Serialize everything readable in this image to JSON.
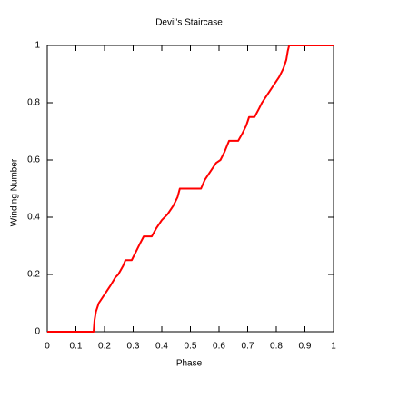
{
  "chart_data": {
    "type": "line",
    "title": "Devil's Staircase",
    "x_label": "Phase",
    "y_label": "Winding Number",
    "x": [
      0,
      0.162,
      0.165,
      0.17,
      0.18,
      0.2,
      0.22,
      0.238,
      0.248,
      0.265,
      0.273,
      0.295,
      0.31,
      0.325,
      0.337,
      0.365,
      0.38,
      0.4,
      0.42,
      0.44,
      0.455,
      0.463,
      0.537,
      0.55,
      0.57,
      0.59,
      0.605,
      0.62,
      0.635,
      0.667,
      0.68,
      0.695,
      0.705,
      0.724,
      0.74,
      0.75,
      0.77,
      0.79,
      0.81,
      0.825,
      0.835,
      0.84,
      0.845,
      1
    ],
    "series": [
      {
        "name": "Winding Number",
        "color": "#ff0000",
        "values": [
          0,
          0,
          0.04,
          0.07,
          0.1,
          0.13,
          0.16,
          0.19,
          0.2,
          0.23,
          0.25,
          0.25,
          0.28,
          0.31,
          0.333,
          0.333,
          0.36,
          0.39,
          0.41,
          0.44,
          0.47,
          0.5,
          0.5,
          0.53,
          0.56,
          0.59,
          0.6,
          0.63,
          0.667,
          0.667,
          0.69,
          0.72,
          0.75,
          0.75,
          0.78,
          0.8,
          0.83,
          0.86,
          0.89,
          0.92,
          0.95,
          0.98,
          1,
          1
        ]
      }
    ],
    "xlim": [
      0,
      1
    ],
    "ylim": [
      0,
      1
    ],
    "xticks": [
      0,
      0.1,
      0.2,
      0.3,
      0.4,
      0.5,
      0.6,
      0.7,
      0.8,
      0.9,
      1
    ],
    "yticks": [
      0,
      0.2,
      0.4,
      0.6,
      0.8,
      1
    ]
  }
}
